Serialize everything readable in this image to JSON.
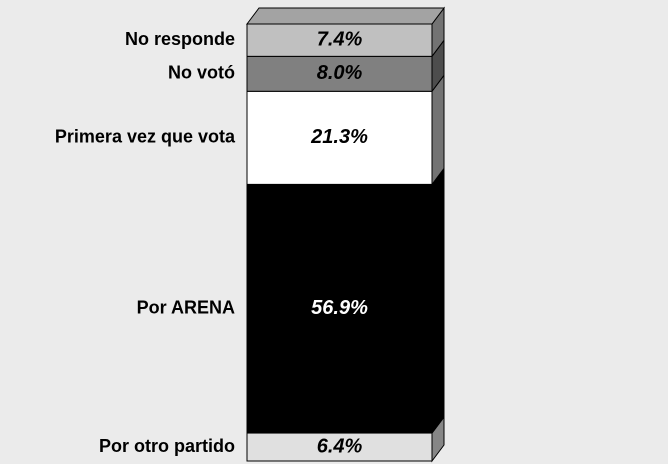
{
  "chart_data": {
    "type": "bar",
    "stacked": true,
    "categories": [
      ""
    ],
    "series": [
      {
        "name": "Por otro partido",
        "color": "#e0e0e0",
        "values": [
          6.4
        ],
        "value_labels": [
          "6.4%"
        ]
      },
      {
        "name": "Por ARENA",
        "color": "#000000",
        "values": [
          56.9
        ],
        "value_labels": [
          "56.9%"
        ]
      },
      {
        "name": "Primera vez que vota",
        "color": "#ffffff",
        "values": [
          21.3
        ],
        "value_labels": [
          "21.3%"
        ]
      },
      {
        "name": "No votó",
        "color": "#808080",
        "values": [
          8.0
        ],
        "value_labels": [
          "8.0%"
        ]
      },
      {
        "name": "No responde",
        "color": "#c0c0c0",
        "values": [
          7.4
        ],
        "value_labels": [
          "7.4%"
        ]
      }
    ],
    "ylim": [
      0,
      100
    ]
  }
}
